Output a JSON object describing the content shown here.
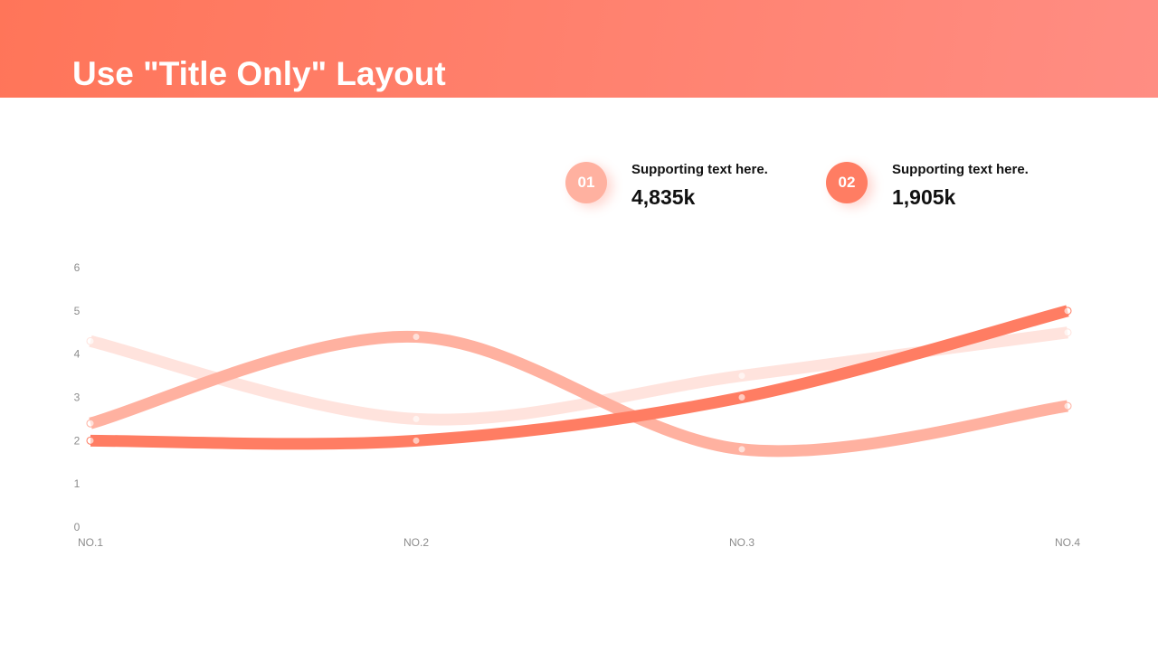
{
  "header": {
    "title": "Use \"Title Only\" Layout"
  },
  "stats": [
    {
      "number": "01",
      "label": "Supporting text here.",
      "value": "4,835k",
      "color": "#ffb1a0"
    },
    {
      "number": "02",
      "label": "Supporting text here.",
      "value": "1,905k",
      "color": "#ff7d63"
    }
  ],
  "chart_data": {
    "type": "line",
    "smooth": true,
    "categories": [
      "NO.1",
      "NO.2",
      "NO.3",
      "NO.4"
    ],
    "ylim": [
      0,
      6
    ],
    "yticks": [
      "0",
      "1",
      "2",
      "3",
      "4",
      "5",
      "6"
    ],
    "grid": false,
    "legend": "none",
    "series": [
      {
        "values": [
          4.3,
          2.5,
          3.5,
          4.5
        ],
        "color": "#ffe3dd"
      },
      {
        "values": [
          2.4,
          4.4,
          1.8,
          2.8
        ],
        "color": "#ffb1a0"
      },
      {
        "values": [
          2.0,
          2.0,
          3.0,
          5.0
        ],
        "color": "#ff7d63"
      }
    ]
  }
}
